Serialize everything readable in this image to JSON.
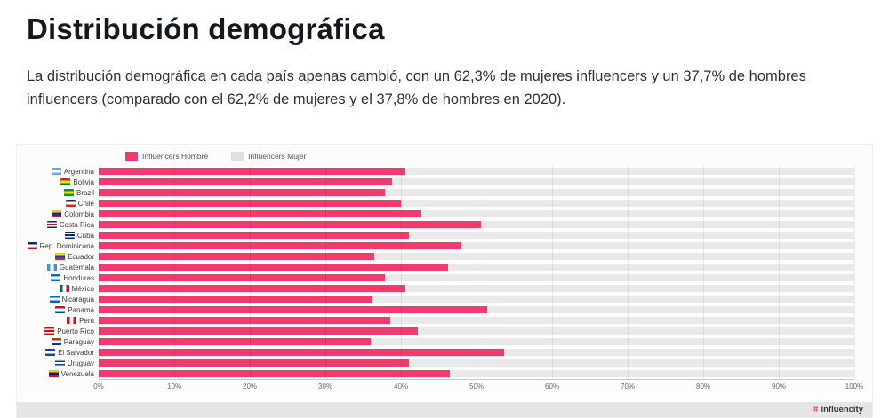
{
  "page": {
    "title": "Distribución demográfica",
    "description": "La distribución demográfica en cada país apenas cambió, con un 62,3% de mujeres influencers y un 37,7% de hombres influencers (comparado con el 62,2% de mujeres y el 37,8% de hombres en 2020)."
  },
  "chart": {
    "legend": [
      {
        "label": "Influencers Hombre",
        "color": "#F23A6E"
      },
      {
        "label": "Influencers Mujer",
        "color": "#e0e0e0"
      }
    ],
    "bar_color": "#F23A6E",
    "track_color": "#e9e9e9",
    "footer_logo_mark": "#",
    "footer_logo_text": "influencity"
  },
  "chart_data": {
    "type": "bar",
    "orientation": "horizontal",
    "title": "",
    "xlabel": "",
    "ylabel": "",
    "xlim": [
      0,
      100
    ],
    "grid": true,
    "legend_position": "top",
    "x_ticks": [
      "0%",
      "10%",
      "20%",
      "30%",
      "40%",
      "50%",
      "60%",
      "70%",
      "80%",
      "90%",
      "100%"
    ],
    "categories": [
      {
        "label": "Argentina",
        "flag_dir": "h",
        "flag_colors": [
          "#74ACDF",
          "#FFFFFF",
          "#74ACDF"
        ]
      },
      {
        "label": "Bolivia",
        "flag_dir": "h",
        "flag_colors": [
          "#D52B1E",
          "#F9E300",
          "#007934"
        ]
      },
      {
        "label": "Brazil",
        "flag_dir": "h",
        "flag_colors": [
          "#009B3A",
          "#FEDF00",
          "#009B3A"
        ]
      },
      {
        "label": "Chile",
        "flag_dir": "h",
        "flag_colors": [
          "#0039A6",
          "#FFFFFF",
          "#D52B1E"
        ]
      },
      {
        "label": "Colombia",
        "flag_dir": "h",
        "flag_colors": [
          "#FCD116",
          "#003893",
          "#CE1126"
        ]
      },
      {
        "label": "Costa Rica",
        "flag_dir": "h",
        "flag_colors": [
          "#002B7F",
          "#FFFFFF",
          "#CE1126",
          "#FFFFFF",
          "#002B7F"
        ]
      },
      {
        "label": "Cuba",
        "flag_dir": "h",
        "flag_colors": [
          "#002A8F",
          "#FFFFFF",
          "#002A8F",
          "#FFFFFF",
          "#002A8F"
        ]
      },
      {
        "label": "Rep. Dominicana",
        "flag_dir": "h",
        "flag_colors": [
          "#002D62",
          "#FFFFFF",
          "#CE1126"
        ]
      },
      {
        "label": "Ecuador",
        "flag_dir": "h",
        "flag_colors": [
          "#FFDD00",
          "#034EA2",
          "#ED1C24"
        ]
      },
      {
        "label": "Guatemala",
        "flag_dir": "v",
        "flag_colors": [
          "#4997D0",
          "#FFFFFF",
          "#4997D0"
        ]
      },
      {
        "label": "Honduras",
        "flag_dir": "h",
        "flag_colors": [
          "#0073CF",
          "#FFFFFF",
          "#0073CF"
        ]
      },
      {
        "label": "México",
        "flag_dir": "v",
        "flag_colors": [
          "#006847",
          "#FFFFFF",
          "#CE1126"
        ]
      },
      {
        "label": "Nicaragua",
        "flag_dir": "h",
        "flag_colors": [
          "#0067C6",
          "#FFFFFF",
          "#0067C6"
        ]
      },
      {
        "label": "Panamá",
        "flag_dir": "h",
        "flag_colors": [
          "#D21034",
          "#FFFFFF",
          "#005293"
        ]
      },
      {
        "label": "Perú",
        "flag_dir": "v",
        "flag_colors": [
          "#D91023",
          "#FFFFFF",
          "#D91023"
        ]
      },
      {
        "label": "Puerto Rico",
        "flag_dir": "h",
        "flag_colors": [
          "#ED0000",
          "#FFFFFF",
          "#ED0000",
          "#FFFFFF",
          "#ED0000"
        ]
      },
      {
        "label": "Paraguay",
        "flag_dir": "h",
        "flag_colors": [
          "#D52B1E",
          "#FFFFFF",
          "#0038A8"
        ]
      },
      {
        "label": "El Salvador",
        "flag_dir": "h",
        "flag_colors": [
          "#0F47AF",
          "#FFFFFF",
          "#0F47AF"
        ]
      },
      {
        "label": "Uruguay",
        "flag_dir": "h",
        "flag_colors": [
          "#FFFFFF",
          "#0038A8",
          "#FFFFFF",
          "#0038A8",
          "#FFFFFF"
        ]
      },
      {
        "label": "Venezuela",
        "flag_dir": "h",
        "flag_colors": [
          "#FFCC00",
          "#00247D",
          "#CF142B"
        ]
      }
    ],
    "series": [
      {
        "name": "Influencers Hombre",
        "values": [
          40.6,
          38.8,
          37.9,
          40.0,
          42.7,
          50.6,
          41.0,
          48.0,
          36.5,
          46.2,
          37.9,
          40.6,
          36.2,
          51.4,
          38.6,
          42.2,
          36.0,
          53.7,
          41.1,
          46.5
        ]
      },
      {
        "name": "Influencers Mujer",
        "values": [
          59.4,
          61.2,
          62.1,
          60.0,
          57.3,
          49.4,
          59.0,
          52.0,
          63.5,
          53.8,
          62.1,
          59.4,
          63.8,
          48.6,
          61.4,
          57.8,
          64.0,
          46.3,
          58.9,
          53.5
        ]
      }
    ]
  }
}
